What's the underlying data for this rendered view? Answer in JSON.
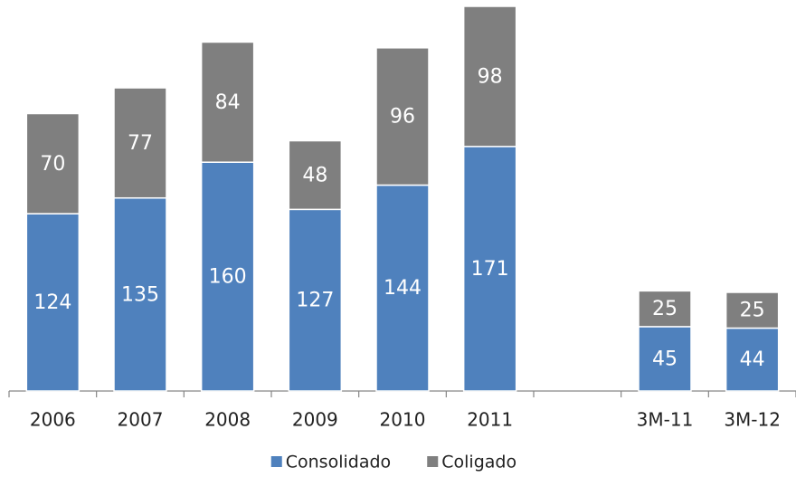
{
  "chart_data": {
    "type": "bar",
    "stacked": true,
    "categories": [
      "2006",
      "2007",
      "2008",
      "2009",
      "2010",
      "2011",
      null,
      "3M-11",
      "3M-12"
    ],
    "series": [
      {
        "name": "Consolidado",
        "color": "#4f81bd",
        "values": [
          124,
          135,
          160,
          127,
          144,
          171,
          null,
          45,
          44
        ]
      },
      {
        "name": "Coligado",
        "color": "#7f7f7f",
        "values": [
          70,
          77,
          84,
          48,
          96,
          98,
          null,
          25,
          25
        ]
      }
    ],
    "legend": "bottom"
  }
}
